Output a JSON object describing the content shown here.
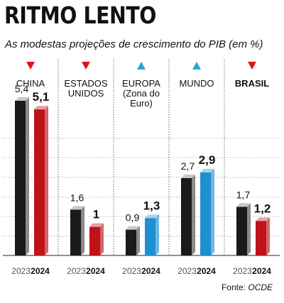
{
  "title": "RITMO LENTO",
  "subtitle": "As modestas projeções de crescimento do PIB (em %)",
  "source_label": "Fonte:",
  "source_name": "OCDE",
  "colors": {
    "down": "#e3101b",
    "up": "#2e9fdd",
    "bar2023": "#1a1a1a",
    "bar2024_down": "#c0121b",
    "bar2024_up": "#1e8fd0"
  },
  "chart_data": {
    "type": "bar",
    "title": "RITMO LENTO",
    "subtitle": "As modestas projeções de crescimento do PIB (em %)",
    "series": [
      {
        "name": "2023",
        "values": [
          5.4,
          1.6,
          0.9,
          2.7,
          1.7
        ]
      },
      {
        "name": "2024",
        "values": [
          5.1,
          1.0,
          1.3,
          2.9,
          1.2
        ]
      }
    ],
    "categories": [
      "CHINA",
      "ESTADOS UNIDOS",
      "EUROPA (Zona do Euro)",
      "MUNDO",
      "BRASIL"
    ],
    "groups": [
      {
        "name_lines": [
          "CHINA"
        ],
        "bold": false,
        "trend": "down",
        "value_labels": [
          "5,4",
          "5,1"
        ]
      },
      {
        "name_lines": [
          "ESTADOS",
          "UNIDOS"
        ],
        "bold": false,
        "trend": "down",
        "value_labels": [
          "1,6",
          "1"
        ]
      },
      {
        "name_lines": [
          "EUROPA",
          "(Zona do",
          "Euro)"
        ],
        "bold": false,
        "trend": "up",
        "value_labels": [
          "0,9",
          "1,3"
        ]
      },
      {
        "name_lines": [
          "MUNDO"
        ],
        "bold": false,
        "trend": "up",
        "value_labels": [
          "2,7",
          "2,9"
        ]
      },
      {
        "name_lines": [
          "BRASIL"
        ],
        "bold": true,
        "trend": "down",
        "value_labels": [
          "1,7",
          "1,2"
        ]
      }
    ],
    "year_labels": [
      "2023",
      "2024"
    ],
    "ylim": [
      0,
      6
    ],
    "grid": true,
    "legend": "none"
  }
}
